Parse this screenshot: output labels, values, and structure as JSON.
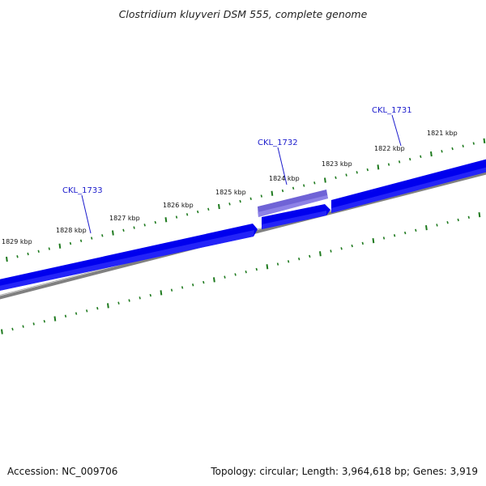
{
  "title": "Clostridium kluyveri DSM 555, complete genome",
  "footer": {
    "accession": "Accession: NC_009706",
    "summary": "Topology: circular; Length: 3,964,618 bp; Genes: 3,919"
  },
  "colors": {
    "gene": "#0000ee",
    "gene_highlight": "#6f63d6",
    "backbone": "#808080",
    "ticks": "#1e7a1e",
    "gene_label": "#1a1acc"
  },
  "kbp_labels": [
    "1829 kbp",
    "1828 kbp",
    "1827 kbp",
    "1826 kbp",
    "1825 kbp",
    "1824 kbp",
    "1823 kbp",
    "1822 kbp",
    "1821 kbp"
  ],
  "gene_labels": [
    "CKL_1733",
    "CKL_1732",
    "CKL_1731"
  ]
}
